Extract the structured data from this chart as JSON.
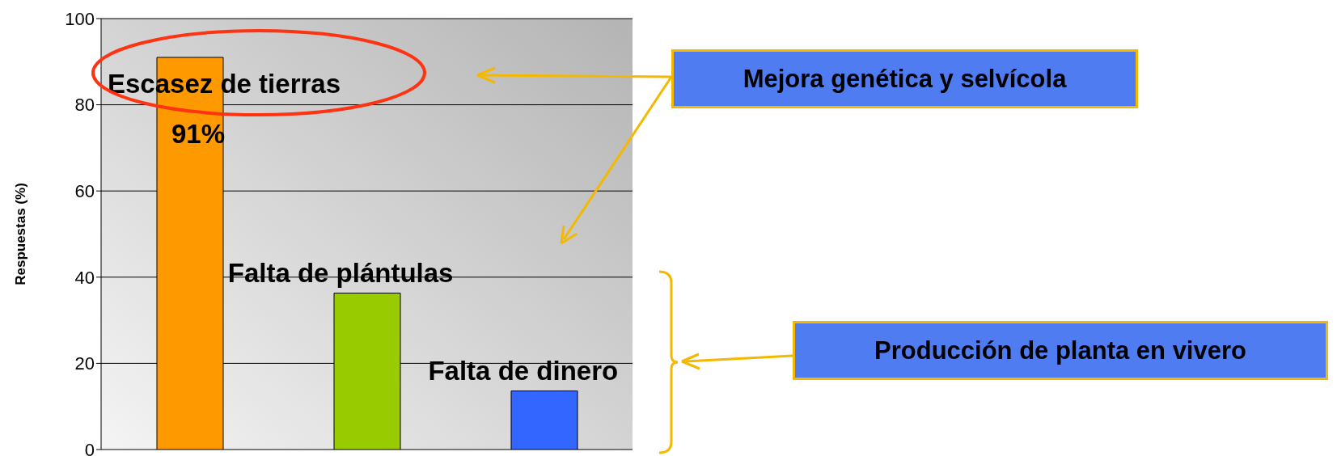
{
  "chart_data": {
    "type": "bar",
    "ylabel": "Respuestas (%)",
    "categories": [
      "Escasez de tierras",
      "Falta de plántulas",
      "Falta de dinero"
    ],
    "values": [
      91,
      36.3,
      13.6
    ],
    "colors": [
      "#ff9900",
      "#99cc00",
      "#3366ff"
    ],
    "value_labels": [
      "91%",
      null,
      null
    ],
    "ylim": [
      0,
      100
    ],
    "yticks": [
      0,
      20,
      40,
      60,
      80,
      100
    ],
    "grid": "y",
    "annotations": [
      "Mejora genética y selvícola",
      "Producción de planta en vivero"
    ]
  }
}
